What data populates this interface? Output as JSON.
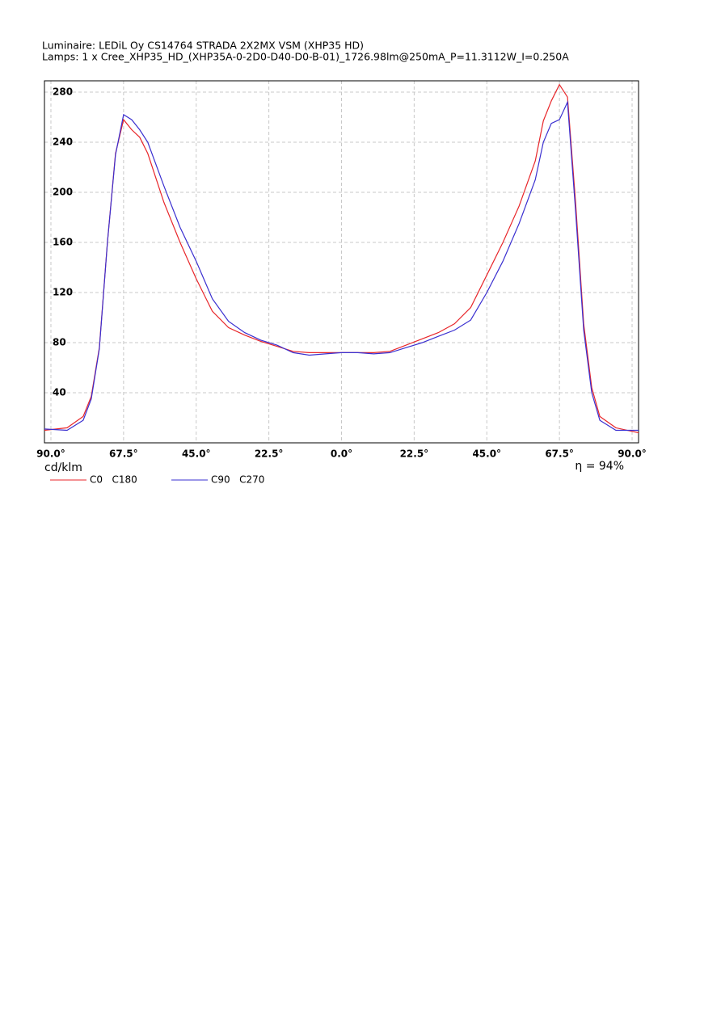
{
  "chart_data": {
    "type": "line",
    "title": "Luminaire: LEDiL Oy CS14764 STRADA 2X2MX VSM (XHP35 HD)",
    "subtitle": "Lamps: 1 x Cree_XHP35_HD_(XHP35A-0-2D0-D40-D0-B-01)_1726.98lm@250mA_P=11.3112W_I=0.250A",
    "y_label": "cd/klm",
    "annotation": "η = 94%",
    "x": [
      -92,
      -85,
      -80,
      -77.5,
      -75,
      -72.5,
      -70,
      -67.5,
      -65,
      -62.5,
      -60,
      -55,
      -50,
      -45,
      -40,
      -35,
      -30,
      -25,
      -20,
      -15,
      -10,
      -5,
      0,
      5,
      10,
      15,
      20,
      25,
      30,
      35,
      40,
      45,
      50,
      55,
      60,
      62.5,
      65,
      67.5,
      70,
      72.5,
      75,
      77.5,
      80,
      85,
      92
    ],
    "series": [
      {
        "name": "C0   C180",
        "color": "#e8262a",
        "values": [
          10,
          12,
          21,
          37,
          76,
          160,
          231,
          258,
          250,
          244,
          231,
          192,
          160,
          131,
          105,
          92,
          86,
          81,
          77,
          73,
          72,
          72,
          72,
          72,
          72,
          73,
          78,
          83,
          88,
          95,
          108,
          134,
          160,
          189,
          225,
          257,
          273,
          286,
          276,
          192,
          95,
          44,
          21,
          12,
          8
        ]
      },
      {
        "name": "C90   C270",
        "color": "#3a2fd0",
        "values": [
          11,
          10,
          18,
          35,
          75,
          160,
          230,
          262,
          258,
          250,
          240,
          205,
          172,
          145,
          115,
          97,
          88,
          82,
          78,
          72,
          70,
          71,
          72,
          72,
          71,
          72,
          76,
          80,
          85,
          90,
          98,
          120,
          145,
          175,
          210,
          240,
          255,
          258,
          272,
          185,
          90,
          40,
          18,
          10,
          10
        ]
      }
    ],
    "xlim": [
      -92,
      92
    ],
    "xticks": [
      {
        "value": -90,
        "label": "90.0°"
      },
      {
        "value": -67.5,
        "label": "67.5°"
      },
      {
        "value": -45,
        "label": "45.0°"
      },
      {
        "value": -22.5,
        "label": "22.5°"
      },
      {
        "value": 0,
        "label": "0.0°"
      },
      {
        "value": 22.5,
        "label": "22.5°"
      },
      {
        "value": 45,
        "label": "45.0°"
      },
      {
        "value": 67.5,
        "label": "67.5°"
      },
      {
        "value": 90,
        "label": "90.0°"
      }
    ],
    "ylim": [
      0,
      289
    ],
    "yticks": [
      40,
      80,
      120,
      160,
      200,
      240,
      280
    ],
    "grid": true
  }
}
